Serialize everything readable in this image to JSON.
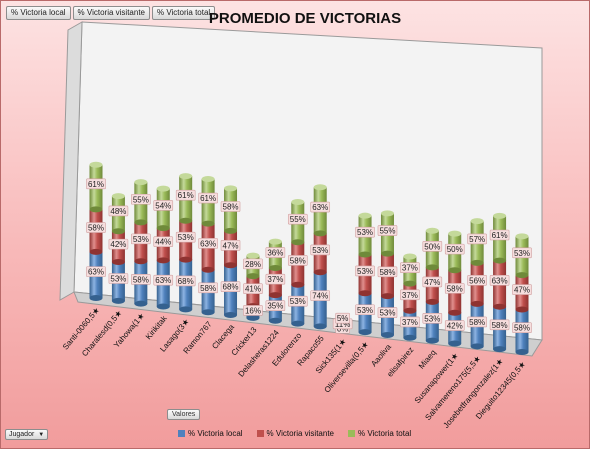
{
  "pivot_buttons": [
    "% Victoria local",
    "% Victoria visitante",
    "% Victoria total"
  ],
  "valores_label": "Valores",
  "jugador_label": "Jugador",
  "chart_data": {
    "type": "bar",
    "stacked": true,
    "three_d": true,
    "title": "PROMEDIO DE VICTORIAS",
    "legend_position": "bottom",
    "categories": [
      "Santi-0060,5★",
      "Charalesd(0,5★",
      "Yahowa(1★",
      "Kirikitak",
      "Lasago(3★",
      "Ramon767",
      "Clacega",
      "Cricker13",
      "Delasheras1224",
      "Edulorenzo",
      "Rapaco55",
      "Sick135(1★",
      "Oliversevilla(0,5★",
      "Aaoliva",
      "elisafpirez",
      "Miaeq",
      "Susanapower(1★",
      "Salvamereno175(5,5★",
      "Josebetfrangonzalez(1★",
      "Dieguito12345(0,5★"
    ],
    "series": [
      {
        "name": "% Victoria local",
        "color": "#4f81bd",
        "values": [
          63,
          53,
          58,
          63,
          68,
          58,
          68,
          16,
          35,
          53,
          74,
          0,
          53,
          53,
          37,
          53,
          42,
          58,
          58,
          58
        ]
      },
      {
        "name": "% Victoria visitante",
        "color": "#c0504d",
        "values": [
          58,
          42,
          53,
          44,
          53,
          63,
          47,
          41,
          37,
          58,
          53,
          11,
          53,
          58,
          37,
          47,
          58,
          56,
          63,
          47
        ]
      },
      {
        "name": "% Victoria total",
        "color": "#9bbb59",
        "values": [
          61,
          48,
          55,
          54,
          61,
          61,
          58,
          28,
          36,
          55,
          63,
          5,
          53,
          55,
          37,
          50,
          50,
          57,
          61,
          53
        ]
      }
    ],
    "value_labels": [
      [
        "63%",
        "58%",
        "61%"
      ],
      [
        "53%",
        "42%",
        "48%"
      ],
      [
        "58%",
        "53%",
        "55%"
      ],
      [
        "63%",
        "44%",
        "54%"
      ],
      [
        "68%",
        "53%",
        "61%"
      ],
      [
        "58%",
        "63%",
        "61%"
      ],
      [
        "68%",
        "47%",
        "58%"
      ],
      [
        "16%",
        "41%",
        "28%"
      ],
      [
        "35%",
        "37%",
        "36%"
      ],
      [
        "53%",
        "58%",
        "55%"
      ],
      [
        "74%",
        "53%",
        "63%"
      ],
      [
        "0%",
        "11%",
        "5%"
      ],
      [
        "53%",
        "53%",
        "53%"
      ],
      [
        "53%",
        "58%",
        "55%"
      ],
      [
        "37%",
        "37%",
        "37%"
      ],
      [
        "53%",
        "47%",
        "50%"
      ],
      [
        "42%",
        "58%",
        "50%"
      ],
      [
        "58%",
        "56%",
        "57%"
      ],
      [
        "58%",
        "63%",
        "61%"
      ],
      [
        "58%",
        "47%",
        "53%"
      ]
    ]
  }
}
